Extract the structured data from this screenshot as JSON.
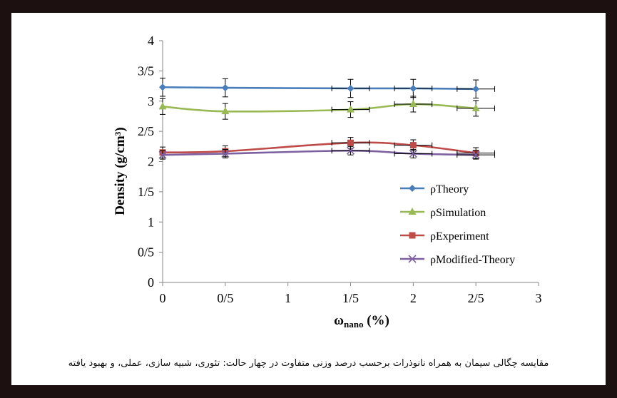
{
  "chart_data": {
    "type": "line",
    "title": "",
    "xlabel": "ω",
    "xlabel_sub": "nano",
    "xlabel_unit": " (%)",
    "ylabel": "Density (g/cm³)",
    "xlim": [
      0,
      3
    ],
    "ylim": [
      0,
      4
    ],
    "x_ticks": [
      0,
      0.5,
      1,
      1.5,
      2,
      2.5,
      3
    ],
    "x_tick_labels": [
      "0",
      "0/5",
      "1",
      "1/5",
      "2",
      "2/5",
      "3"
    ],
    "y_ticks": [
      0,
      0.5,
      1,
      1.5,
      2,
      2.5,
      3,
      3.5,
      4
    ],
    "y_tick_labels": [
      "0",
      "0/5",
      "1",
      "1/5",
      "2",
      "2/5",
      "3",
      "3/5",
      "4"
    ],
    "x": [
      0,
      0.5,
      1.5,
      2,
      2.5
    ],
    "series": [
      {
        "name": "ρTheory",
        "color": "#4a7ebb",
        "marker": "diamond",
        "values": [
          3.23,
          3.22,
          3.21,
          3.21,
          3.2
        ],
        "y_error": [
          0.15,
          0.15,
          0.15,
          0.15,
          0.15
        ],
        "x_error": [
          0,
          0,
          0.15,
          0.15,
          0.15
        ]
      },
      {
        "name": "ρSimulation",
        "color": "#98b954",
        "marker": "triangle",
        "values": [
          2.91,
          2.83,
          2.86,
          2.95,
          2.88
        ],
        "y_error": [
          0.13,
          0.13,
          0.13,
          0.13,
          0.13
        ],
        "x_error": [
          0,
          0,
          0.15,
          0.15,
          0.15
        ]
      },
      {
        "name": "ρExperiment",
        "color": "#be4b48",
        "marker": "square",
        "values": [
          2.15,
          2.17,
          2.31,
          2.27,
          2.14
        ],
        "y_error": [
          0.09,
          0.09,
          0.09,
          0.09,
          0.09
        ],
        "x_error": [
          0,
          0,
          0.15,
          0.15,
          0.15
        ]
      },
      {
        "name": "ρModified-Theory",
        "color": "#7d60a0",
        "marker": "x",
        "values": [
          2.11,
          2.13,
          2.18,
          2.13,
          2.11
        ],
        "y_error": [
          0.07,
          0.07,
          0.07,
          0.07,
          0.07
        ],
        "x_error": [
          0,
          0,
          0.15,
          0.15,
          0.15
        ]
      }
    ],
    "legend": "right"
  },
  "caption": "مقایسه چگالی سیمان به همراه نانوذرات برحسب درصد وزنی متفاوت در چهار حالت: تئوری، شبیه سازی، عملی، و بهبود یافته"
}
